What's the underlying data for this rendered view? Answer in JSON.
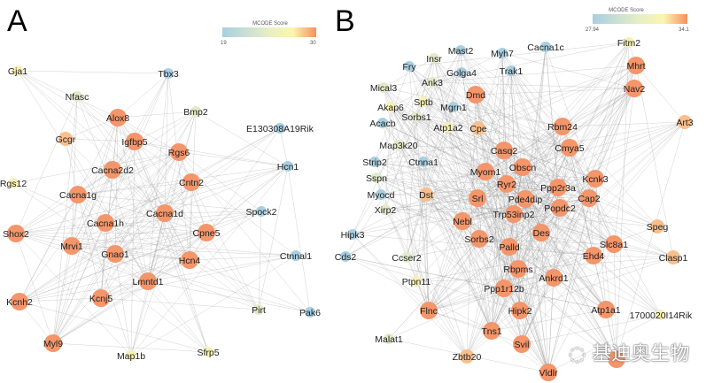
{
  "colors": {
    "high": "#f4956a",
    "midhigh": "#f8bf8c",
    "mid": "#f6f1b4",
    "midlow": "#e2ebc8",
    "low": "#a8cfe1"
  },
  "panelA": {
    "letter": "A",
    "legend": {
      "title": "MCODE Score",
      "min": "19",
      "max": "30"
    },
    "nodes": [
      [
        "Gja1",
        "mid"
      ],
      [
        "Tbx3",
        "low"
      ],
      [
        "Nfasc",
        "midlow"
      ],
      [
        "Alox8",
        "high"
      ],
      [
        "Bmp2",
        "midlow"
      ],
      [
        "E130308A19Rik",
        "low"
      ],
      [
        "Gcgr",
        "midhigh"
      ],
      [
        "Igfbp5",
        "high"
      ],
      [
        "Rgs6",
        "high"
      ],
      [
        "Hcn1",
        "low"
      ],
      [
        "Rgs12",
        "mid"
      ],
      [
        "Cacna2d2",
        "high"
      ],
      [
        "Cntn2",
        "high"
      ],
      [
        "Cacna1g",
        "high"
      ],
      [
        "Cacna1d",
        "high"
      ],
      [
        "Spock2",
        "low"
      ],
      [
        "Cacna1h",
        "high"
      ],
      [
        "Shox2",
        "high"
      ],
      [
        "Cpne5",
        "high"
      ],
      [
        "Mrvi1",
        "high"
      ],
      [
        "Gnao1",
        "high"
      ],
      [
        "Hcn4",
        "high"
      ],
      [
        "Ctnnal1",
        "low"
      ],
      [
        "Lmntd1",
        "high"
      ],
      [
        "Kcnh2",
        "high"
      ],
      [
        "Kcnj5",
        "high"
      ],
      [
        "Pirt",
        "midlow"
      ],
      [
        "Pak6",
        "low"
      ],
      [
        "Myl9",
        "high"
      ],
      [
        "Map1b",
        "mid"
      ],
      [
        "Sfrp5",
        "mid"
      ]
    ]
  },
  "panelB": {
    "letter": "B",
    "legend": {
      "title": "MCODE Score",
      "min": "27.94",
      "max": "34.1"
    },
    "nodes": [
      [
        "Fitm2",
        "mid"
      ],
      [
        "Mhrt",
        "high"
      ],
      [
        "Nav2",
        "high"
      ],
      [
        "Art3",
        "midhigh"
      ],
      [
        "Cacna1c",
        "low"
      ],
      [
        "Myh7",
        "low"
      ],
      [
        "Mast2",
        "low"
      ],
      [
        "Insr",
        "midlow"
      ],
      [
        "Fry",
        "low"
      ],
      [
        "Golga4",
        "low"
      ],
      [
        "Trak1",
        "low"
      ],
      [
        "Ank3",
        "midlow"
      ],
      [
        "Mical3",
        "midlow"
      ],
      [
        "Dmd",
        "high"
      ],
      [
        "Sptb",
        "mid"
      ],
      [
        "Mgrn1",
        "low"
      ],
      [
        "Akap6",
        "mid"
      ],
      [
        "Sorbs1",
        "midlow"
      ],
      [
        "Acacb",
        "low"
      ],
      [
        "Atp1a2",
        "mid"
      ],
      [
        "Cpe",
        "midhigh"
      ],
      [
        "Rbm24",
        "high"
      ],
      [
        "Map3k20",
        "midlow"
      ],
      [
        "Casq2",
        "high"
      ],
      [
        "Cmya5",
        "high"
      ],
      [
        "Strip2",
        "low"
      ],
      [
        "Ctnna1",
        "low"
      ],
      [
        "Obscn",
        "high"
      ],
      [
        "Myom1",
        "high"
      ],
      [
        "Kcnk3",
        "high"
      ],
      [
        "Sspn",
        "midlow"
      ],
      [
        "Ryr2",
        "high"
      ],
      [
        "Ppp2r3a",
        "high"
      ],
      [
        "Myocd",
        "low"
      ],
      [
        "Dst",
        "midhigh"
      ],
      [
        "Srl",
        "high"
      ],
      [
        "Pde4dip",
        "high"
      ],
      [
        "Cap2",
        "high"
      ],
      [
        "Xirp2",
        "midlow"
      ],
      [
        "Popdc2",
        "high"
      ],
      [
        "Trp53inp2",
        "high"
      ],
      [
        "Nebl",
        "high"
      ],
      [
        "Hipk3",
        "low"
      ],
      [
        "Speg",
        "midhigh"
      ],
      [
        "Des",
        "high"
      ],
      [
        "Sorbs2",
        "high"
      ],
      [
        "Slc8a1",
        "high"
      ],
      [
        "Palld",
        "high"
      ],
      [
        "Cds2",
        "low"
      ],
      [
        "Ehd4",
        "high"
      ],
      [
        "Ccser2",
        "midlow"
      ],
      [
        "Clasp1",
        "midhigh"
      ],
      [
        "Rbpms",
        "high"
      ],
      [
        "Ankrd1",
        "high"
      ],
      [
        "Ptpn11",
        "mid"
      ],
      [
        "Ppp1r12b",
        "high"
      ],
      [
        "Flnc",
        "high"
      ],
      [
        "Hipk2",
        "high"
      ],
      [
        "Atp1a1",
        "high"
      ],
      [
        "1700020I14Rik",
        "mid"
      ],
      [
        "Tns1",
        "high"
      ],
      [
        "Malat1",
        "midlow"
      ],
      [
        "Svil",
        "high"
      ],
      [
        "Zbtb20",
        "midhigh"
      ],
      [
        "Vldlr",
        "high"
      ],
      [
        "",
        "high"
      ]
    ]
  },
  "watermark": {
    "icon": "wechat-icon",
    "text": "基迪奥生物"
  }
}
